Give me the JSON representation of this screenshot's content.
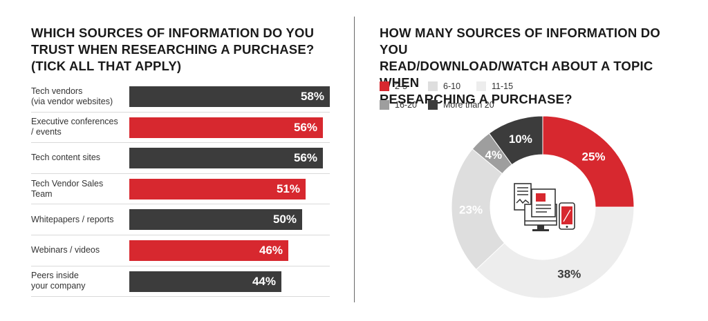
{
  "left_title": "WHICH SOURCES OF INFORMATION DO YOU\nTRUST WHEN RESEARCHING A PURCHASE?\n(TICK ALL THAT APPLY)",
  "right_title": "HOW MANY SOURCES OF INFORMATION DO YOU\nREAD/DOWNLOAD/WATCH ABOUT A TOPIC WHEN\nRESEARCHING A PURCHASE?",
  "colors": {
    "red": "#d7282f",
    "dark": "#3c3c3c",
    "gray": "#9e9e9e",
    "light": "#dedede",
    "lighter": "#ededed"
  },
  "chart_data": [
    {
      "type": "bar",
      "orientation": "horizontal",
      "title": "WHICH SOURCES OF INFORMATION DO YOU TRUST WHEN RESEARCHING A PURCHASE? (TICK ALL THAT APPLY)",
      "categories": [
        "Tech vendors\n(via vendor websites)",
        "Executive conferences\n/ events",
        "Tech content sites",
        "Tech Vendor Sales Team",
        "Whitepapers / reports",
        "Webinars / videos",
        "Peers inside\nyour company"
      ],
      "values": [
        58,
        56,
        56,
        51,
        50,
        46,
        44
      ],
      "value_labels": [
        "58%",
        "56%",
        "56%",
        "51%",
        "50%",
        "46%",
        "44%"
      ],
      "bar_colors": [
        "#3c3c3c",
        "#d7282f",
        "#3c3c3c",
        "#d7282f",
        "#3c3c3c",
        "#d7282f",
        "#3c3c3c"
      ],
      "xlim": [
        0,
        58
      ]
    },
    {
      "type": "pie",
      "donut": true,
      "title": "HOW MANY SOURCES OF INFORMATION DO YOU READ/DOWNLOAD/WATCH ABOUT A TOPIC WHEN RESEARCHING A PURCHASE?",
      "categories": [
        "2-5",
        "11-15",
        "6-10",
        "16-20",
        "More than 20"
      ],
      "values": [
        25,
        38,
        23,
        4,
        10
      ],
      "value_labels": [
        "25%",
        "38%",
        "23%",
        "4%",
        "10%"
      ],
      "colors": [
        "#d7282f",
        "#ededed",
        "#dedede",
        "#9e9e9e",
        "#3c3c3c"
      ],
      "label_colors": [
        "#ffffff",
        "#3c3c3c",
        "#ffffff",
        "#ffffff",
        "#ffffff"
      ],
      "legend": {
        "placement": "top-left",
        "items": [
          {
            "label": "2-5",
            "color": "#d7282f"
          },
          {
            "label": "6-10",
            "color": "#dedede"
          },
          {
            "label": "11-15",
            "color": "#ededed"
          },
          {
            "label": "16-20",
            "color": "#9e9e9e"
          },
          {
            "label": "More than 20",
            "color": "#3c3c3c"
          }
        ]
      },
      "center_icon": "devices-documents-icon"
    }
  ]
}
